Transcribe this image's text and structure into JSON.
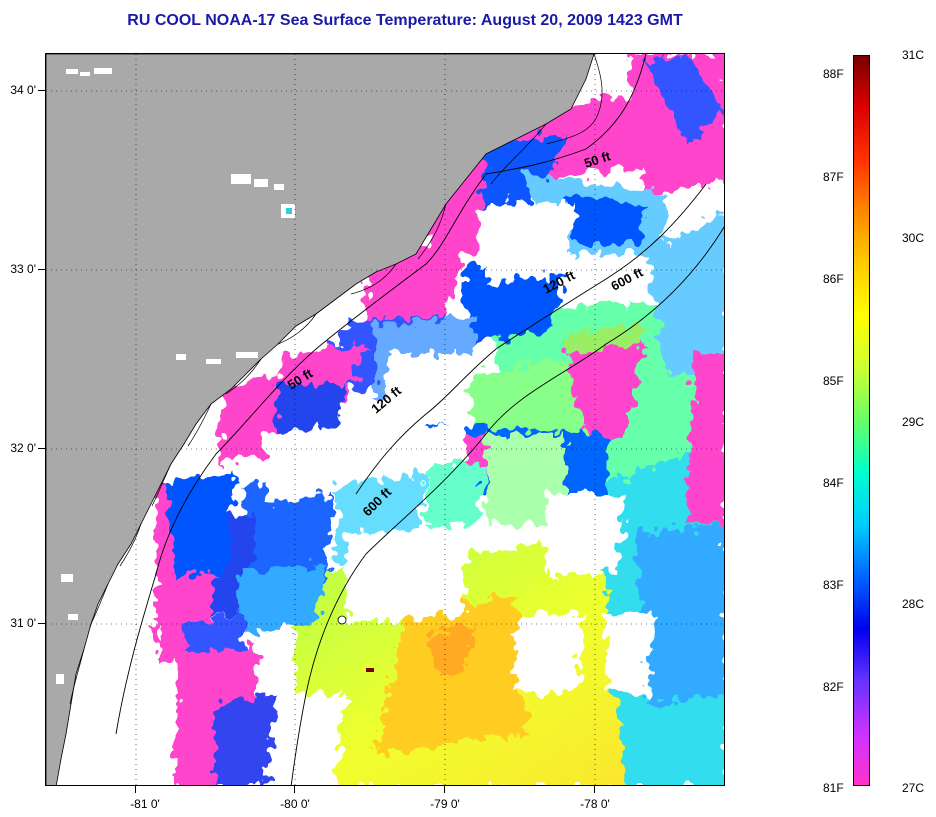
{
  "title": "RU COOL  NOAA-17  Sea Surface Temperature:  August 20, 2009 1423 GMT",
  "latitude_labels": [
    "34 0'",
    "33 0'",
    "32 0'",
    "31 0'"
  ],
  "longitude_labels": [
    "-81 0'",
    "-80 0'",
    "-79 0'",
    "-78 0'"
  ],
  "depth_contour_labels": [
    "50 ft",
    "120 ft",
    "600 ft",
    "50 ft",
    "120 ft",
    "600 ft"
  ],
  "colorbar": {
    "fahrenheit_labels": [
      "88F",
      "87F",
      "86F",
      "85F",
      "84F",
      "83F",
      "82F",
      "81F"
    ],
    "celsius_labels": [
      "31C",
      "30C",
      "29C",
      "28C",
      "27C"
    ],
    "colors": [
      "#ff33cc",
      "#cc33ff",
      "#6633ff",
      "#0000ee",
      "#0066ff",
      "#00ccff",
      "#00ffcc",
      "#66ff66",
      "#ccff33",
      "#ffff00",
      "#ffcc00",
      "#ff8800",
      "#ff3300",
      "#dd0000",
      "#7a0000"
    ]
  },
  "colors": {
    "land": "#a9a9a9",
    "cloud": "#ffffff",
    "title_text": "#1a1aa8"
  }
}
